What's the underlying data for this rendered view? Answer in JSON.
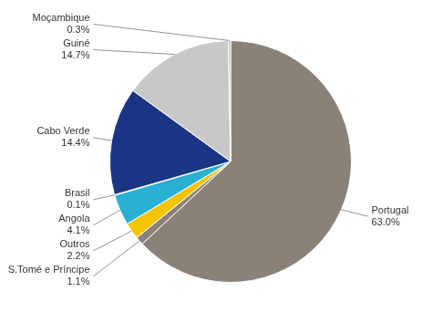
{
  "chart_data": {
    "type": "pie",
    "categories": [
      "Portugal",
      "S.Tomé e Príncipe",
      "Outros",
      "Angola",
      "Brasil",
      "Cabo Verde",
      "Guiné",
      "Moçambique"
    ],
    "values": [
      63.0,
      1.1,
      2.2,
      4.1,
      0.1,
      14.4,
      14.7,
      0.3
    ],
    "value_labels": [
      "63.0%",
      "1.1%",
      "2.2%",
      "4.1%",
      "0.1%",
      "14.4%",
      "14.7%",
      "0.3%"
    ],
    "colors": [
      "#8a8278",
      "#8a8278",
      "#f5c400",
      "#29b0d4",
      "#1a6db5",
      "#1b3585",
      "#c8c8c8",
      "#c0bcb8"
    ],
    "data_labels": true
  }
}
